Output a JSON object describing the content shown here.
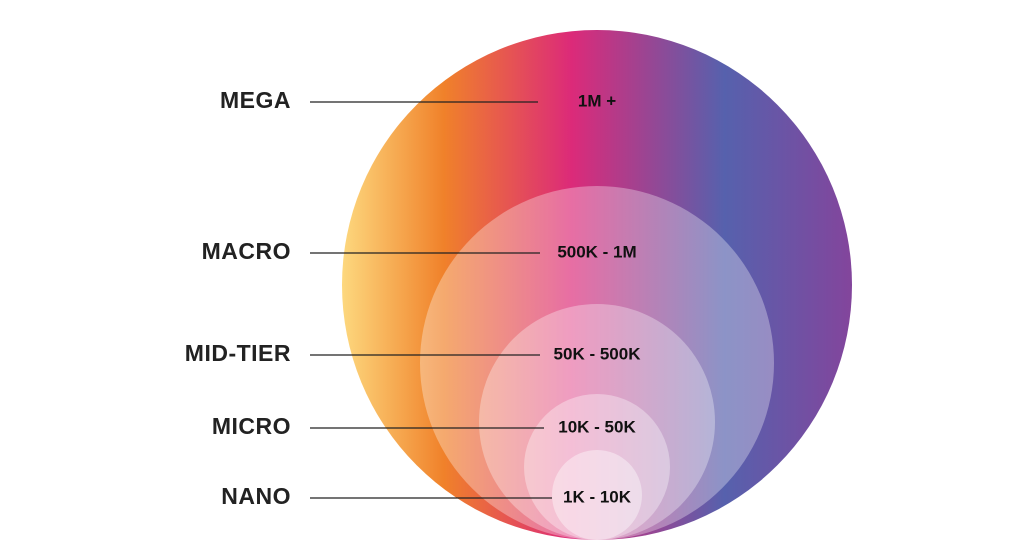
{
  "tiers": [
    {
      "label": "MEGA",
      "range": "1M +"
    },
    {
      "label": "MACRO",
      "range": "500K - 1M"
    },
    {
      "label": "MID-TIER",
      "range": "50K - 500K"
    },
    {
      "label": "MICRO",
      "range": "10K - 50K"
    },
    {
      "label": "NANO",
      "range": "1K - 10K"
    }
  ]
}
